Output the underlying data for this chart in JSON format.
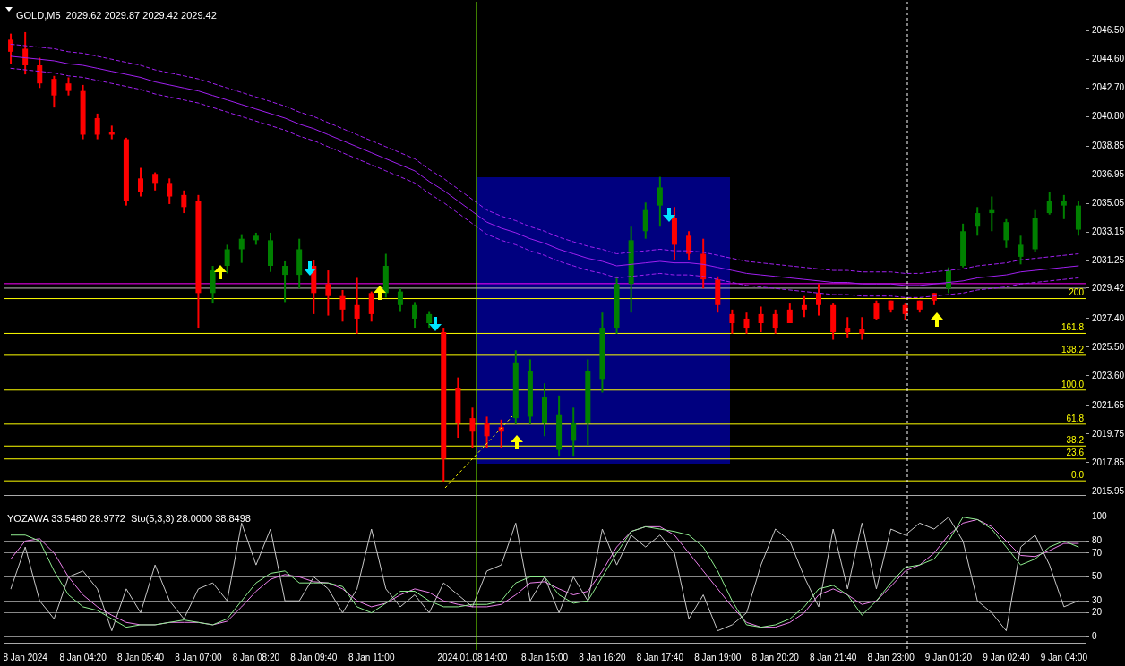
{
  "chart_data": [
    {
      "type": "candlestick",
      "title": "GOLD,M5  2029.62 2029.87 2029.42 2029.42",
      "categories": [
        null,
        null,
        null,
        null,
        null,
        null,
        null,
        null,
        null,
        null,
        null,
        null,
        null,
        null,
        null,
        null,
        null,
        null,
        null,
        null,
        null,
        null,
        null,
        null,
        null,
        null,
        null,
        null,
        null,
        null,
        null,
        null,
        null,
        null,
        null,
        null,
        null,
        null,
        null,
        null,
        null,
        null,
        null,
        null,
        null,
        null,
        null,
        null,
        null,
        null,
        null,
        null,
        null,
        null,
        null,
        null,
        null,
        null,
        null,
        null,
        null,
        null,
        null,
        null,
        null,
        null,
        null,
        null,
        null,
        null,
        null,
        null,
        null,
        null,
        null
      ],
      "ohlc": [
        [
          2045.9,
          2046.3,
          2044.3,
          2045.1
        ],
        [
          2045.3,
          2046.4,
          2043.6,
          2044.2
        ],
        [
          2044.2,
          2044.7,
          2042.7,
          2043.0
        ],
        [
          2043.3,
          2043.5,
          2041.4,
          2042.2
        ],
        [
          2043.0,
          2043.4,
          2042.2,
          2042.5
        ],
        [
          2042.5,
          2042.9,
          2039.3,
          2039.6
        ],
        [
          2040.7,
          2041.0,
          2039.3,
          2039.6
        ],
        [
          2039.8,
          2040.2,
          2039.3,
          2039.6
        ],
        [
          2039.3,
          2039.4,
          2034.9,
          2035.2
        ],
        [
          2036.7,
          2037.4,
          2035.5,
          2035.8
        ],
        [
          2037.0,
          2037.1,
          2035.9,
          2036.4
        ],
        [
          2036.4,
          2036.7,
          2035.0,
          2035.5
        ],
        [
          2035.6,
          2035.9,
          2034.4,
          2034.8
        ],
        [
          2035.2,
          2035.6,
          2026.8,
          2029.1
        ],
        [
          2029.1,
          2030.9,
          2028.4,
          2030.6
        ],
        [
          2030.9,
          2032.3,
          2030.4,
          2032.0
        ],
        [
          2032.0,
          2033.0,
          2031.1,
          2032.7
        ],
        [
          2032.6,
          2033.1,
          2032.3,
          2032.9
        ],
        [
          2030.9,
          2033.1,
          2030.5,
          2032.6
        ],
        [
          2030.3,
          2031.2,
          2028.5,
          2030.9
        ],
        [
          2030.3,
          2032.7,
          2029.4,
          2032.0
        ],
        [
          2030.9,
          2031.3,
          2027.7,
          2029.1
        ],
        [
          2029.7,
          2030.6,
          2027.6,
          2028.9
        ],
        [
          2028.9,
          2029.3,
          2027.2,
          2028.0
        ],
        [
          2028.3,
          2030.1,
          2026.4,
          2027.4
        ],
        [
          2029.1,
          2029.2,
          2027.2,
          2027.7
        ],
        [
          2029.1,
          2031.7,
          2028.8,
          2030.9
        ],
        [
          2028.3,
          2029.4,
          2027.9,
          2029.2
        ],
        [
          2027.4,
          2028.5,
          2026.8,
          2028.3
        ],
        [
          2027.1,
          2027.9,
          2026.8,
          2027.7
        ],
        [
          2026.5,
          2026.8,
          2016.6,
          2018.1
        ],
        [
          2022.8,
          2023.5,
          2019.5,
          2020.5
        ],
        [
          2020.8,
          2021.5,
          2018.8,
          2019.9
        ],
        [
          2020.5,
          2020.9,
          2018.8,
          2019.6
        ],
        [
          2020.2,
          2020.7,
          2018.8,
          2019.9
        ],
        [
          2020.8,
          2025.3,
          2020.4,
          2024.5
        ],
        [
          2020.9,
          2024.7,
          2020.4,
          2023.9
        ],
        [
          2020.5,
          2023.1,
          2019.6,
          2022.2
        ],
        [
          2018.7,
          2022.3,
          2018.3,
          2021.0
        ],
        [
          2019.3,
          2021.5,
          2018.3,
          2020.5
        ],
        [
          2020.5,
          2024.7,
          2019.0,
          2023.9
        ],
        [
          2023.4,
          2027.8,
          2022.5,
          2026.8
        ],
        [
          2026.8,
          2030.2,
          2026.4,
          2029.7
        ],
        [
          2029.7,
          2033.5,
          2027.8,
          2032.6
        ],
        [
          2033.2,
          2035.1,
          2032.7,
          2034.6
        ],
        [
          2034.9,
          2036.8,
          2033.5,
          2036.1
        ],
        [
          2034.1,
          2034.8,
          2031.3,
          2032.3
        ],
        [
          2032.9,
          2033.2,
          2031.3,
          2031.7
        ],
        [
          2031.7,
          2032.7,
          2029.4,
          2030.0
        ],
        [
          2030.0,
          2030.2,
          2027.8,
          2028.3
        ],
        [
          2027.7,
          2028.0,
          2026.4,
          2027.1
        ],
        [
          2027.4,
          2027.8,
          2026.4,
          2026.8
        ],
        [
          2027.7,
          2028.2,
          2026.5,
          2027.1
        ],
        [
          2027.7,
          2028.0,
          2026.4,
          2026.8
        ],
        [
          2028.0,
          2028.4,
          2027.1,
          2027.1
        ],
        [
          2028.3,
          2028.9,
          2027.5,
          2028.0
        ],
        [
          2029.1,
          2029.7,
          2027.6,
          2028.3
        ],
        [
          2028.3,
          2028.4,
          2026.0,
          2026.5
        ],
        [
          2026.8,
          2027.5,
          2026.1,
          2026.5
        ],
        [
          2026.7,
          2027.5,
          2026.0,
          2026.4
        ],
        [
          2028.4,
          2028.6,
          2027.3,
          2027.4
        ],
        [
          2028.6,
          2028.6,
          2027.8,
          2028.0
        ],
        [
          2028.3,
          2028.4,
          2027.3,
          2027.7
        ],
        [
          2028.6,
          2028.6,
          2027.8,
          2028.0
        ],
        [
          2029.1,
          2029.1,
          2028.3,
          2028.6
        ],
        [
          2029.4,
          2030.8,
          2029.1,
          2030.6
        ],
        [
          2030.9,
          2033.7,
          2030.8,
          2033.2
        ],
        [
          2033.5,
          2034.8,
          2032.9,
          2034.4
        ],
        [
          2034.4,
          2035.5,
          2033.2,
          2034.6
        ],
        [
          2032.6,
          2034.0,
          2032.1,
          2033.8
        ],
        [
          2031.5,
          2032.9,
          2031.0,
          2032.3
        ],
        [
          2032.0,
          2034.6,
          2031.8,
          2034.1
        ],
        [
          2034.4,
          2035.8,
          2034.3,
          2035.2
        ],
        [
          2034.9,
          2035.6,
          2034.0,
          2035.2
        ],
        [
          2033.3,
          2035.2,
          2032.9,
          2034.9
        ]
      ],
      "colors": [
        "#ff0000",
        "#ff0000",
        "#ff0000",
        "#ff0000",
        "#ff0000",
        "#ff0000",
        "#ff0000",
        "#ff0000",
        "#ff0000",
        "#ff0000",
        "#ff0000",
        "#ff0000",
        "#ff0000",
        "#ff0000",
        "#008000",
        "#008000",
        "#008000",
        "#008000",
        "#008000",
        "#008000",
        "#008000",
        "#ff0000",
        "#ff0000",
        "#ff0000",
        "#ff0000",
        "#ff0000",
        "#008000",
        "#008000",
        "#008000",
        "#008000",
        "#ff0000",
        "#ff0000",
        "#ff0000",
        "#ff0000",
        "#ff0000",
        "#008000",
        "#008000",
        "#008000",
        "#008000",
        "#008000",
        "#008000",
        "#008000",
        "#008000",
        "#008000",
        "#008000",
        "#008000",
        "#ff0000",
        "#ff0000",
        "#ff0000",
        "#ff0000",
        "#ff0000",
        "#ff0000",
        "#ff0000",
        "#ff0000",
        "#ff0000",
        "#ff0000",
        "#ff0000",
        "#ff0000",
        "#ff0000",
        "#ff0000",
        "#ff0000",
        "#ff0000",
        "#ff0000",
        "#ff0000",
        "#ff0000",
        "#008000",
        "#008000",
        "#008000",
        "#008000",
        "#008000",
        "#008000",
        "#008000",
        "#008000",
        "#008000",
        "#008000"
      ],
      "series": [
        {
          "type": "line",
          "color": "#a020f0",
          "line_style": "solid",
          "values": [
            2044.8,
            2044.7,
            2044.6,
            2044.5,
            2044.3,
            2044.2,
            2044.0,
            2043.8,
            2043.6,
            2043.4,
            2043.1,
            2042.9,
            2042.7,
            2042.5,
            2042.2,
            2041.9,
            2041.6,
            2041.3,
            2041.0,
            2040.7,
            2040.3,
            2040.0,
            2039.6,
            2039.2,
            2038.8,
            2038.4,
            2038.0,
            2037.6,
            2037.2,
            2036.5,
            2035.9,
            2035.2,
            2034.5,
            2033.8,
            2033.4,
            2033.1,
            2032.7,
            2032.4,
            2032.0,
            2031.7,
            2031.4,
            2031.2,
            2030.9,
            2031.0,
            2031.1,
            2031.2,
            2031.1,
            2031.1,
            2031.0,
            2030.8,
            2030.6,
            2030.4,
            2030.3,
            2030.2,
            2030.1,
            2030.0,
            2029.9,
            2029.8,
            2029.8,
            2029.7,
            2029.7,
            2029.7,
            2029.6,
            2029.6,
            2029.7,
            2029.8,
            2029.9,
            2030.1,
            2030.2,
            2030.3,
            2030.5,
            2030.6,
            2030.7,
            2030.8,
            2030.9
          ]
        },
        {
          "type": "line",
          "color": "#a020f0",
          "line_style": "dashed",
          "values": [
            2045.6,
            2045.5,
            2045.4,
            2045.3,
            2045.1,
            2045.0,
            2044.8,
            2044.6,
            2044.4,
            2044.2,
            2043.9,
            2043.7,
            2043.5,
            2043.3,
            2043.0,
            2042.7,
            2042.4,
            2042.1,
            2041.8,
            2041.5,
            2041.1,
            2040.8,
            2040.4,
            2040.0,
            2039.6,
            2039.2,
            2038.8,
            2038.4,
            2038.0,
            2037.3,
            2036.7,
            2036.0,
            2035.3,
            2034.6,
            2034.2,
            2033.9,
            2033.5,
            2033.2,
            2032.8,
            2032.5,
            2032.2,
            2032.0,
            2031.7,
            2031.8,
            2031.9,
            2032.0,
            2031.9,
            2031.9,
            2031.8,
            2031.6,
            2031.4,
            2031.2,
            2031.1,
            2031.0,
            2030.9,
            2030.8,
            2030.7,
            2030.6,
            2030.6,
            2030.5,
            2030.5,
            2030.5,
            2030.4,
            2030.4,
            2030.5,
            2030.6,
            2030.7,
            2030.9,
            2031.0,
            2031.1,
            2031.3,
            2031.4,
            2031.5,
            2031.6,
            2031.7
          ]
        },
        {
          "type": "line",
          "color": "#a020f0",
          "line_style": "dashed",
          "values": [
            2044.0,
            2043.9,
            2043.8,
            2043.7,
            2043.5,
            2043.4,
            2043.2,
            2043.0,
            2042.8,
            2042.6,
            2042.3,
            2042.1,
            2041.9,
            2041.7,
            2041.4,
            2041.1,
            2040.8,
            2040.5,
            2040.2,
            2039.9,
            2039.5,
            2039.2,
            2038.8,
            2038.4,
            2038.0,
            2037.6,
            2037.2,
            2036.8,
            2036.4,
            2035.7,
            2035.1,
            2034.4,
            2033.7,
            2033.0,
            2032.6,
            2032.3,
            2031.9,
            2031.6,
            2031.2,
            2030.9,
            2030.6,
            2030.4,
            2030.1,
            2030.2,
            2030.3,
            2030.4,
            2030.3,
            2030.3,
            2030.2,
            2030.0,
            2029.8,
            2029.6,
            2029.5,
            2029.4,
            2029.3,
            2029.2,
            2029.1,
            2029.0,
            2029.0,
            2028.9,
            2028.9,
            2028.9,
            2028.8,
            2028.8,
            2028.9,
            2029.0,
            2029.1,
            2029.3,
            2029.4,
            2029.5,
            2029.7,
            2029.8,
            2029.9,
            2030.0,
            2030.1
          ]
        }
      ],
      "marker": "none",
      "ylim": [
        2015.7,
        2048.0
      ],
      "yticks": [
        {
          "value": 2046.5,
          "label": "2046.50"
        },
        {
          "value": 2044.6,
          "label": "2044.60"
        },
        {
          "value": 2042.7,
          "label": "2042.70"
        },
        {
          "value": 2040.8,
          "label": "2040.80"
        },
        2038.85,
        2036.95,
        2035.05,
        2033.15,
        2031.25,
        2029.42,
        {
          "value": 2027.4,
          "label": "2027.40"
        },
        {
          "value": 2025.5,
          "label": "2025.50"
        },
        {
          "value": 2023.6,
          "label": "2023.60"
        },
        2021.65,
        2019.75,
        2017.85,
        2015.95
      ],
      "tick_labels": "y",
      "ref_lines": [
        {
          "axis": "y",
          "value": 2028.73,
          "color": "#ffff00"
        },
        {
          "axis": "y",
          "value": 2026.42,
          "color": "#ffff00"
        },
        {
          "axis": "y",
          "value": 2024.97,
          "color": "#ffff00"
        },
        {
          "axis": "y",
          "value": 2022.66,
          "color": "#ffff00"
        },
        {
          "axis": "y",
          "value": 2020.4,
          "color": "#ffff00"
        },
        {
          "axis": "y",
          "value": 2018.95,
          "color": "#ffff00"
        },
        {
          "axis": "y",
          "value": 2018.09,
          "color": "#ffff00"
        },
        {
          "axis": "y",
          "value": 2016.64,
          "color": "#ffff00"
        },
        {
          "axis": "y",
          "value": 2029.72,
          "color": "#ff00ff"
        },
        {
          "axis": "y",
          "value": 2029.42,
          "color": "#c0c0c0"
        }
      ],
      "annotations": [
        {
          "text": "200",
          "y": 2028.73
        },
        {
          "text": "161.8",
          "y": 2026.42
        },
        {
          "text": "138.2",
          "y": 2024.97
        },
        {
          "text": "100.0",
          "y": 2022.66
        },
        {
          "text": "61.8",
          "y": 2020.4
        },
        {
          "text": "38.2",
          "y": 2018.95
        },
        {
          "text": "23.6",
          "y": 2018.09
        },
        {
          "text": "0.0",
          "y": 2016.64
        }
      ]
    },
    {
      "type": "line",
      "title": "YOZAWA 33.5480 28.9772  Sto(5,3,3) 28.0000 38.8498",
      "categories": [
        null,
        "8 Jan 2024",
        null,
        null,
        null,
        "8 Jan 04:20",
        null,
        null,
        null,
        "8 Jan 05:40",
        null,
        null,
        null,
        "8 Jan 07:00",
        null,
        null,
        null,
        "8 Jan 08:20",
        null,
        null,
        null,
        "8 Jan 09:40",
        null,
        null,
        null,
        "8 Jan 11:00",
        null,
        null,
        null,
        null,
        null,
        null,
        "2024.01.08 14:00",
        null,
        null,
        null,
        null,
        "8 Jan 15:00",
        null,
        null,
        null,
        "8 Jan 16:20",
        null,
        null,
        null,
        "8 Jan 17:40",
        null,
        null,
        null,
        "8 Jan 19:00",
        null,
        null,
        null,
        "8 Jan 20:20",
        null,
        null,
        null,
        "8 Jan 21:40",
        null,
        null,
        null,
        "8 Jan 23:00",
        null,
        null,
        null,
        "9 Jan 01:20",
        null,
        null,
        null,
        "9 Jan 02:40",
        null,
        null,
        null,
        "9 Jan 04:00",
        null
      ],
      "series": [
        {
          "color": "#c8c8c8",
          "values": [
            40,
            75,
            30,
            15,
            50,
            55,
            40,
            5,
            40,
            20,
            60,
            30,
            15,
            40,
            45,
            30,
            95,
            60,
            90,
            30,
            30,
            50,
            40,
            20,
            40,
            90,
            40,
            25,
            35,
            20,
            45,
            35,
            25,
            55,
            60,
            95,
            30,
            50,
            20,
            50,
            30,
            90,
            60,
            85,
            75,
            85,
            70,
            15,
            35,
            5,
            10,
            20,
            60,
            90,
            80,
            50,
            25,
            90,
            40,
            95,
            40,
            90,
            85,
            95,
            90,
            100,
            80,
            30,
            20,
            5,
            75,
            85,
            60,
            25,
            30
          ]
        },
        {
          "color": "#90ee90",
          "values": [
            85,
            85,
            80,
            55,
            35,
            25,
            22,
            15,
            8,
            10,
            10,
            12,
            14,
            12,
            10,
            15,
            30,
            45,
            53,
            55,
            45,
            45,
            45,
            42,
            25,
            20,
            28,
            38,
            38,
            30,
            25,
            25,
            27,
            27,
            30,
            45,
            50,
            50,
            35,
            28,
            30,
            50,
            70,
            88,
            92,
            90,
            88,
            85,
            75,
            55,
            30,
            10,
            8,
            10,
            15,
            25,
            40,
            43,
            35,
            18,
            30,
            45,
            58,
            60,
            65,
            80,
            100,
            98,
            90,
            75,
            60,
            65,
            75,
            80,
            75
          ]
        },
        {
          "color": "#ee82ee",
          "values": [
            65,
            80,
            82,
            70,
            50,
            35,
            25,
            18,
            12,
            10,
            10,
            12,
            12,
            12,
            10,
            13,
            25,
            38,
            48,
            52,
            50,
            46,
            45,
            40,
            30,
            25,
            28,
            35,
            40,
            37,
            30,
            27,
            25,
            25,
            27,
            35,
            45,
            46,
            40,
            35,
            38,
            55,
            75,
            88,
            92,
            92,
            85,
            70,
            55,
            40,
            25,
            12,
            8,
            8,
            12,
            20,
            35,
            40,
            35,
            27,
            30,
            42,
            55,
            60,
            70,
            85,
            95,
            98,
            92,
            80,
            68,
            67,
            72,
            78,
            78
          ]
        }
      ],
      "marker": "none",
      "line_style": "solid",
      "ylim": [
        -5,
        105
      ],
      "yticks": [
        0,
        20,
        30,
        50,
        70,
        80,
        100
      ],
      "grid": "y"
    }
  ]
}
